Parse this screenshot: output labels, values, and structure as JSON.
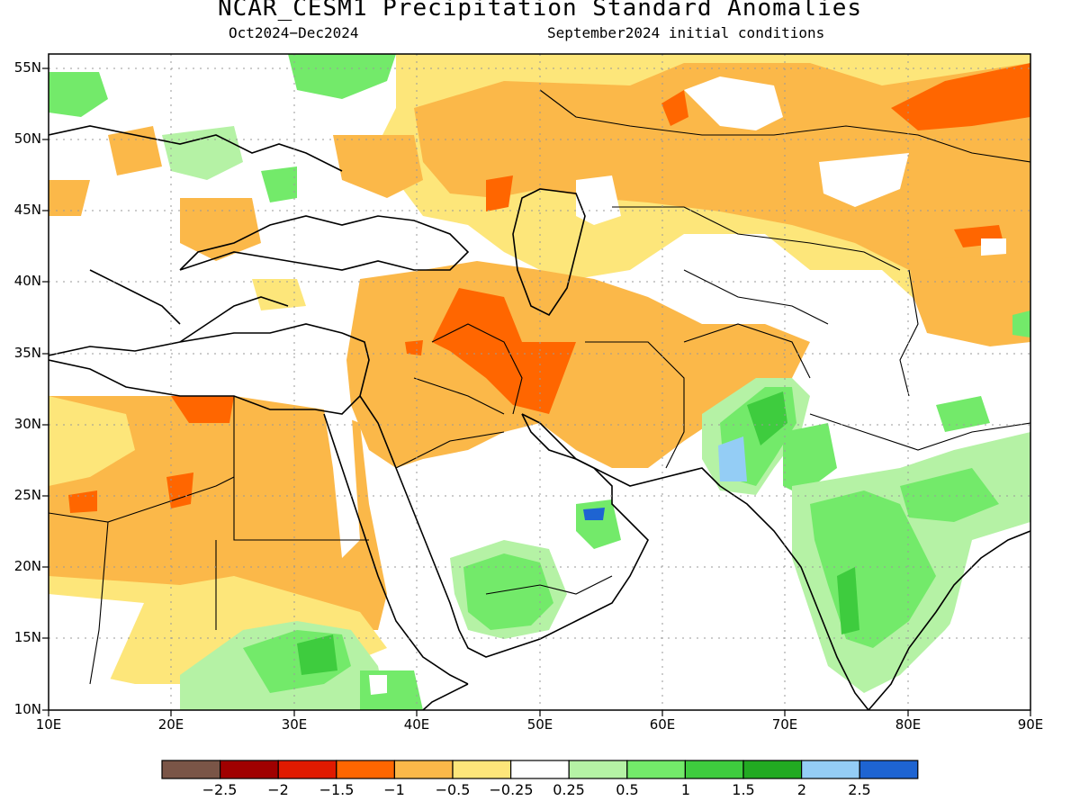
{
  "title": "NCAR_CESM1 Precipitation Standard Anomalies",
  "subtitle_left": "Oct2024−Dec2024",
  "subtitle_right": "September2024 initial conditions",
  "axes": {
    "lat_ticks": [
      "55N",
      "50N",
      "45N",
      "40N",
      "35N",
      "30N",
      "25N",
      "20N",
      "15N",
      "10N"
    ],
    "lon_ticks": [
      "10E",
      "20E",
      "30E",
      "40E",
      "50E",
      "60E",
      "70E",
      "80E",
      "90E"
    ],
    "lon_range": [
      10,
      90
    ],
    "lat_range": [
      10,
      56
    ],
    "grid": true
  },
  "colorbar": {
    "colors": [
      "#7a5547",
      "#a00000",
      "#e01a00",
      "#ff6600",
      "#fbb849",
      "#fde67a",
      "#ffffff",
      "#b5f2a5",
      "#73ea6a",
      "#3ecc3e",
      "#22aa22",
      "#94cdf5",
      "#1e64d2"
    ],
    "labels": [
      "−2.5",
      "−2",
      "−1.5",
      "−1",
      "−0.5",
      "−0.25",
      "0.25",
      "0.5",
      "1",
      "1.5",
      "2",
      "2.5"
    ]
  }
}
